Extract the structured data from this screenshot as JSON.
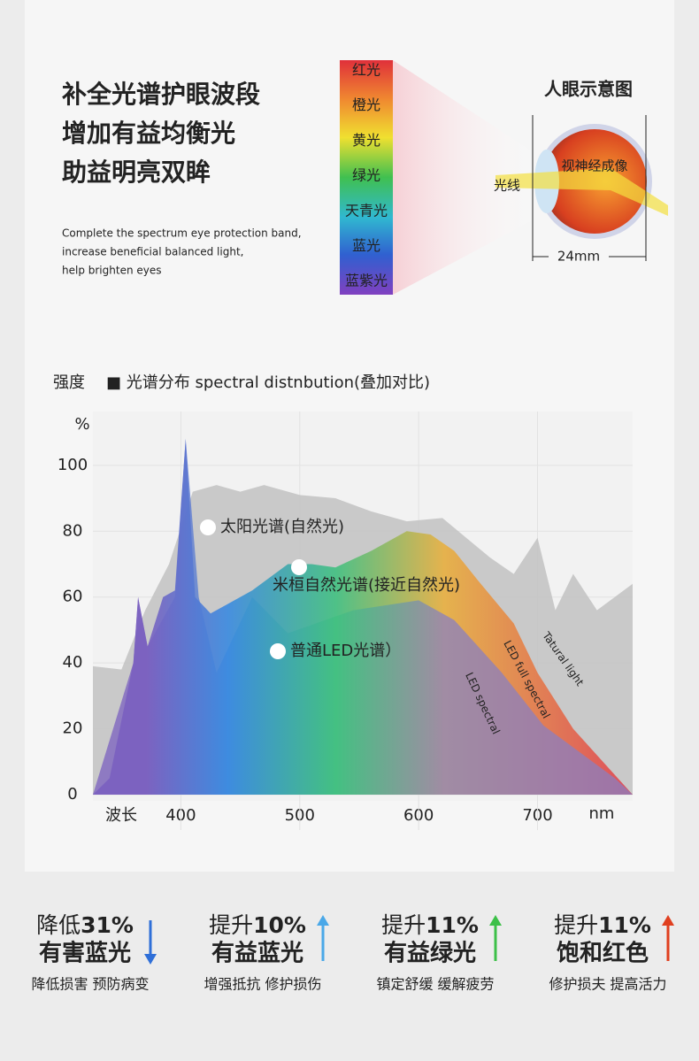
{
  "header": {
    "title_lines": [
      "补全光谱护眼波段",
      "增加有益均衡光",
      "助益明亮双眸"
    ],
    "subtitle_lines": [
      "Complete the spectrum eye protection band,",
      " increase beneficial balanced light,",
      "help brighten eyes"
    ]
  },
  "spectrum_bands": [
    "红光",
    "橙光",
    "黄光",
    "绿光",
    "天青光",
    "蓝光",
    "蓝紫光"
  ],
  "eye_diagram": {
    "title": "人眼示意图",
    "retina_label": "视神经成像",
    "light_label": "光线",
    "size_label": "24mm"
  },
  "chart_data": {
    "type": "area",
    "title": "■ 光谱分布  spectral distnbution(叠加对比)",
    "y_label": "强度",
    "y_unit": "%",
    "x_label": "波长",
    "x_unit": "nm",
    "xlim": [
      326,
      780
    ],
    "ylim": [
      0,
      115
    ],
    "xticks": [
      400,
      500,
      600,
      700
    ],
    "yticks": [
      0,
      20,
      40,
      60,
      80,
      100
    ],
    "grid": true,
    "series": [
      {
        "name": "太阳光谱(自然光)",
        "color": "#c4c4c4",
        "x": [
          326,
          350,
          370,
          390,
          410,
          430,
          450,
          470,
          500,
          530,
          560,
          590,
          620,
          640,
          660,
          680,
          700,
          715,
          730,
          750,
          780
        ],
        "values": [
          39,
          38,
          56,
          70,
          92,
          94,
          92,
          94,
          91,
          90,
          86,
          83,
          84,
          78,
          72,
          67,
          78,
          56,
          67,
          56,
          64
        ]
      },
      {
        "name": "米桓自然光谱(接近自然光)",
        "color": "#e8b040",
        "x": [
          326,
          340,
          360,
          364,
          372,
          385,
          395,
          404,
          412,
          425,
          440,
          460,
          490,
          510,
          530,
          560,
          590,
          610,
          630,
          650,
          680,
          700,
          730,
          780
        ],
        "values": [
          0,
          5,
          40,
          60,
          45,
          60,
          62,
          108,
          60,
          55,
          58,
          62,
          70,
          70,
          69,
          74,
          80,
          79,
          74,
          65,
          52,
          37,
          20,
          0
        ]
      },
      {
        "name": "普通LED光谱）",
        "color": "#8a7fc0",
        "x": [
          326,
          360,
          364,
          372,
          395,
          404,
          415,
          430,
          460,
          490,
          545,
          600,
          630,
          670,
          705,
          765,
          780
        ],
        "values": [
          0,
          40,
          60,
          45,
          60,
          108,
          60,
          37,
          60,
          49,
          56,
          59,
          53,
          37,
          21,
          5,
          0
        ]
      }
    ],
    "annotations": [
      "Tatural light",
      "LED full spectral",
      "LED spectral"
    ]
  },
  "features": [
    {
      "prefix": "降低",
      "amount": "31%",
      "title": "有害蓝光",
      "desc": "降低损害 预防病变",
      "direction": "down",
      "color": "#2f6fd8"
    },
    {
      "prefix": "提升",
      "amount": "10%",
      "title": "有益蓝光",
      "desc": "增强抵抗 修护损伤",
      "direction": "up",
      "color": "#4aa8e8"
    },
    {
      "prefix": "提升",
      "amount": "11%",
      "title": "有益绿光",
      "desc": "镇定舒缓 缓解疲劳",
      "direction": "up",
      "color": "#3cc048"
    },
    {
      "prefix": "提升",
      "amount": "11%",
      "title": "饱和红色",
      "desc": "修护损夫 提高活力",
      "direction": "up",
      "color": "#e04020"
    }
  ]
}
